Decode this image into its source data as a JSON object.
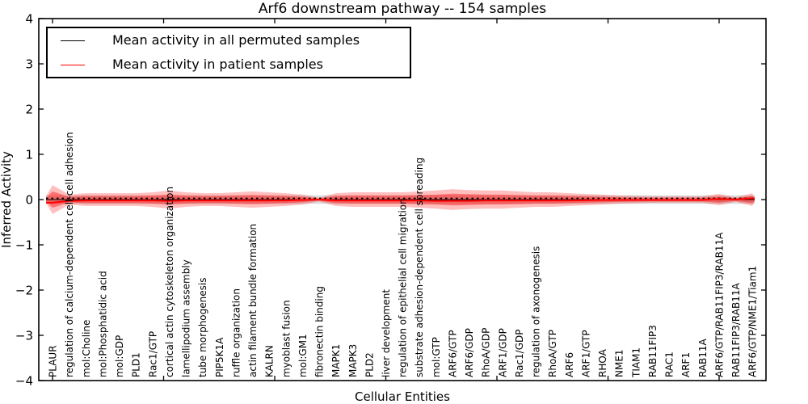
{
  "title": "Arf6 downstream pathway -- 154 samples",
  "legend": {
    "items": [
      {
        "label": "Mean activity in all permuted samples",
        "color": "#000000"
      },
      {
        "label": "Mean activity in patient samples",
        "color": "#ff0000"
      }
    ]
  },
  "chart_data": {
    "type": "line",
    "title": "Arf6 downstream pathway -- 154 samples",
    "xlabel": "Cellular Entities",
    "ylabel": "Inferred Activity",
    "ylim": [
      -4,
      4
    ],
    "yticks": [
      4,
      3,
      2,
      1,
      0,
      -1,
      -2,
      -3,
      -4
    ],
    "ytick_labels": [
      "4",
      "3",
      "2",
      "1",
      "0",
      "−1",
      "−2",
      "−3",
      "−4"
    ],
    "grid": false,
    "legend_position": "upper left",
    "categories": [
      "PLAUR",
      "regulation of calcium-dependent cell-cell adhesion",
      "mol:Choline",
      "mol:Phosphatidic acid",
      "mol:GDP",
      "PLD1",
      "Rac1/GTP",
      "cortical actin cytoskeleton organization",
      "lamellipodium assembly",
      "tube morphogenesis",
      "PIP5K1A",
      "ruffle organization",
      "actin filament bundle formation",
      "KALRN",
      "myoblast fusion",
      "mol:GM1",
      "fibronectin binding",
      "MAPK1",
      "MAPK3",
      "PLD2",
      "liver development",
      "regulation of epithelial cell migration",
      "substrate adhesion-dependent cell spreading",
      "mol:GTP",
      "ARF6/GTP",
      "ARF6/GDP",
      "RhoA/GDP",
      "ARF1/GDP",
      "Rac1/GDP",
      "regulation of axonogenesis",
      "RhoA/GTP",
      "ARF6",
      "ARF1/GTP",
      "RHOA",
      "NME1",
      "TIAM1",
      "RAB11FIP3",
      "RAC1",
      "ARF1",
      "RAB11A",
      "ARF6/GTP/RAB11FIP3/RAB11A",
      "RAB11FIP3/RAB11A",
      "ARF6/GTP/NME1/Tiam1"
    ],
    "series": [
      {
        "name": "Mean activity in all permuted samples",
        "color": "#000000",
        "style": "dashed",
        "values": [
          0,
          0,
          0,
          0,
          0,
          0,
          0,
          0,
          0,
          0,
          0,
          0,
          0,
          0,
          0,
          0,
          0,
          0,
          0,
          0,
          0,
          0,
          0,
          0,
          0,
          0,
          0,
          0,
          0,
          0,
          0,
          0,
          0,
          0,
          0,
          0,
          0,
          0,
          0,
          0,
          0,
          0,
          0
        ]
      },
      {
        "name": "Mean activity in patient samples",
        "color": "#ff0000",
        "style": "solid",
        "values": [
          -0.07,
          -0.03,
          -0.02,
          -0.02,
          -0.02,
          -0.02,
          -0.02,
          -0.03,
          -0.02,
          -0.02,
          -0.02,
          -0.02,
          -0.02,
          -0.02,
          -0.02,
          -0.01,
          0,
          -0.02,
          -0.02,
          -0.02,
          -0.02,
          -0.02,
          -0.02,
          -0.03,
          -0.03,
          -0.03,
          -0.02,
          -0.02,
          -0.02,
          -0.02,
          -0.02,
          -0.02,
          -0.015,
          -0.01,
          -0.01,
          -0.01,
          -0.01,
          -0.01,
          -0.01,
          -0.01,
          0.015,
          0,
          0.03
        ]
      }
    ],
    "bands": [
      {
        "name": "patient std outer",
        "color": "#ff0000",
        "opacity": 0.25,
        "half_widths": [
          0.32,
          0.11,
          0.14,
          0.14,
          0.14,
          0.14,
          0.16,
          0.2,
          0.16,
          0.14,
          0.14,
          0.16,
          0.18,
          0.16,
          0.14,
          0.11,
          0.04,
          0.14,
          0.16,
          0.16,
          0.16,
          0.16,
          0.18,
          0.2,
          0.23,
          0.21,
          0.2,
          0.2,
          0.18,
          0.16,
          0.16,
          0.14,
          0.125,
          0.11,
          0.09,
          0.08,
          0.07,
          0.07,
          0.07,
          0.07,
          0.125,
          0.05,
          0.14
        ]
      },
      {
        "name": "patient std inner",
        "color": "#ff0000",
        "opacity": 0.4,
        "half_widths": [
          0.18,
          0.06,
          0.08,
          0.08,
          0.08,
          0.08,
          0.09,
          0.11,
          0.09,
          0.08,
          0.08,
          0.09,
          0.1,
          0.09,
          0.08,
          0.06,
          0.02,
          0.08,
          0.09,
          0.09,
          0.09,
          0.09,
          0.1,
          0.11,
          0.13,
          0.12,
          0.11,
          0.11,
          0.1,
          0.09,
          0.09,
          0.08,
          0.07,
          0.06,
          0.05,
          0.045,
          0.04,
          0.04,
          0.04,
          0.04,
          0.07,
          0.03,
          0.08
        ]
      },
      {
        "name": "permuted std",
        "color": "#d9d9d9",
        "opacity": 0.9,
        "half_width": 0.095
      }
    ]
  }
}
